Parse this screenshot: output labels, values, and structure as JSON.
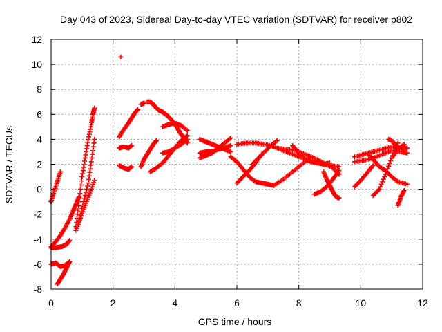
{
  "chart_data": {
    "type": "scatter",
    "title": "Day 043 of 2023, Sidereal Day-to-day VTEC variation (SDTVAR) for receiver p802",
    "xlabel": "GPS time / hours",
    "ylabel": "SDTVAR / TECUs",
    "xlim": [
      0,
      12
    ],
    "ylim": [
      -8,
      12
    ],
    "xticks": [
      0,
      2,
      4,
      6,
      8,
      10,
      12
    ],
    "yticks": [
      -8,
      -6,
      -4,
      -2,
      0,
      2,
      4,
      6,
      8,
      10,
      12
    ],
    "grid": true,
    "marker": "+",
    "color": "#ff0000",
    "series": [
      {
        "name": "s1",
        "x": [
          0.0,
          0.1,
          0.2,
          0.3
        ],
        "y": [
          -1.0,
          -0.2,
          0.6,
          1.4
        ]
      },
      {
        "name": "s2",
        "x": [
          0.0,
          0.15,
          0.3,
          0.45,
          0.6,
          0.7,
          0.8,
          0.9
        ],
        "y": [
          -4.6,
          -4.2,
          -3.7,
          -3.1,
          -2.4,
          -1.8,
          -1.2,
          -0.6
        ]
      },
      {
        "name": "s3",
        "x": [
          0.0,
          0.1,
          0.2,
          0.35,
          0.5,
          0.6
        ],
        "y": [
          -4.7,
          -4.7,
          -4.65,
          -4.6,
          -4.4,
          -4.1
        ]
      },
      {
        "name": "s4",
        "x": [
          0.0,
          0.15,
          0.3,
          0.45,
          0.6
        ],
        "y": [
          -6.0,
          -5.9,
          -6.2,
          -6.1,
          -5.8
        ]
      },
      {
        "name": "s5",
        "x": [
          0.2,
          0.3,
          0.4,
          0.5,
          0.6
        ],
        "y": [
          -7.6,
          -7.2,
          -6.8,
          -6.3,
          -5.8
        ]
      },
      {
        "name": "s6",
        "x": [
          0.8,
          0.95,
          1.1,
          1.25,
          1.4
        ],
        "y": [
          -3.3,
          -2.3,
          -1.3,
          -0.3,
          0.7
        ]
      },
      {
        "name": "s7",
        "x": [
          0.8,
          0.9,
          1.0,
          1.1,
          1.2,
          1.3,
          1.35,
          1.4
        ],
        "y": [
          -3.0,
          -1.0,
          1.0,
          2.5,
          4.0,
          5.2,
          6.0,
          6.5
        ]
      },
      {
        "name": "s8",
        "x": [
          0.9,
          1.05,
          1.2,
          1.3,
          1.4
        ],
        "y": [
          -2.6,
          -1.0,
          0.5,
          2.2,
          4.0
        ]
      },
      {
        "name": "s9",
        "x": [
          2.25
        ],
        "y": [
          10.6
        ]
      },
      {
        "name": "s10",
        "x": [
          2.2,
          2.35,
          2.5,
          2.6,
          2.7,
          2.8
        ],
        "y": [
          4.2,
          4.8,
          5.3,
          5.7,
          6.1,
          6.4
        ]
      },
      {
        "name": "s11",
        "x": [
          2.2,
          2.35,
          2.5,
          2.6
        ],
        "y": [
          3.3,
          3.4,
          3.3,
          3.5
        ]
      },
      {
        "name": "s12",
        "x": [
          2.2,
          2.35,
          2.5,
          2.6
        ],
        "y": [
          1.9,
          1.7,
          1.6,
          1.8
        ]
      },
      {
        "name": "s13",
        "x": [
          2.9,
          3.0
        ],
        "y": [
          6.8,
          6.9
        ]
      },
      {
        "name": "s14",
        "x": [
          2.9,
          3.0,
          3.1,
          3.2,
          3.3,
          3.4
        ],
        "y": [
          1.8,
          2.4,
          2.8,
          3.2,
          3.6,
          3.9
        ]
      },
      {
        "name": "s15",
        "x": [
          3.1,
          3.2,
          3.3,
          3.4,
          3.5,
          3.6,
          3.7,
          3.8,
          3.9,
          4.0,
          4.1,
          4.2,
          4.3,
          4.4
        ],
        "y": [
          7.0,
          7.0,
          6.8,
          6.5,
          6.3,
          6.2,
          6.0,
          5.8,
          5.5,
          5.2,
          4.8,
          4.4,
          4.1,
          3.7
        ]
      },
      {
        "name": "s16",
        "x": [
          3.2,
          3.4,
          3.6,
          3.8,
          4.0,
          4.2,
          4.4
        ],
        "y": [
          1.4,
          1.7,
          2.1,
          2.7,
          3.3,
          3.9,
          4.3
        ]
      },
      {
        "name": "s17",
        "x": [
          3.6,
          3.8,
          4.0,
          4.2,
          4.4
        ],
        "y": [
          2.9,
          3.0,
          3.3,
          3.6,
          4.0
        ]
      },
      {
        "name": "s18",
        "x": [
          3.6,
          3.8,
          4.0,
          4.2,
          4.4
        ],
        "y": [
          5.0,
          5.2,
          5.3,
          5.1,
          4.7
        ]
      },
      {
        "name": "s19",
        "x": [
          4.8,
          5.0,
          5.2,
          5.4,
          5.6,
          5.8
        ],
        "y": [
          2.5,
          2.7,
          2.9,
          3.3,
          3.7,
          4.1
        ]
      },
      {
        "name": "s20",
        "x": [
          4.8,
          5.0,
          5.2,
          5.4,
          5.6,
          5.8
        ],
        "y": [
          4.0,
          3.8,
          3.6,
          3.4,
          3.2,
          3.0
        ]
      },
      {
        "name": "s21",
        "x": [
          4.8,
          5.0,
          5.2,
          5.4,
          5.6,
          5.8
        ],
        "y": [
          2.9,
          3.0,
          3.0,
          3.2,
          3.3,
          3.5
        ]
      },
      {
        "name": "s22",
        "x": [
          6.0,
          6.3,
          6.6,
          6.9,
          7.2,
          7.5,
          7.8,
          8.1,
          8.4,
          8.7,
          9.0,
          9.3
        ],
        "y": [
          3.6,
          3.7,
          3.7,
          3.6,
          3.4,
          3.1,
          2.8,
          2.5,
          2.3,
          2.1,
          1.9,
          1.8
        ]
      },
      {
        "name": "s23",
        "x": [
          6.0,
          6.2,
          6.4,
          6.6,
          6.8
        ],
        "y": [
          0.5,
          1.0,
          1.5,
          2.1,
          2.8
        ]
      },
      {
        "name": "s24",
        "x": [
          6.5,
          6.7,
          6.9,
          7.1,
          7.3
        ],
        "y": [
          2.0,
          2.5,
          3.0,
          3.5,
          3.9
        ]
      },
      {
        "name": "s25",
        "x": [
          5.8,
          6.0,
          6.2,
          6.4,
          6.6,
          6.8,
          7.0,
          7.2
        ],
        "y": [
          2.6,
          2.2,
          1.6,
          1.0,
          0.6,
          0.5,
          0.4,
          0.3
        ]
      },
      {
        "name": "s26",
        "x": [
          7.2,
          7.5,
          7.8,
          8.1,
          8.4
        ],
        "y": [
          0.3,
          0.8,
          1.4,
          2.0,
          2.6
        ]
      },
      {
        "name": "s27",
        "x": [
          7.3,
          7.6,
          7.9,
          8.2,
          8.5,
          8.8,
          9.1,
          9.3
        ],
        "y": [
          3.3,
          3.2,
          3.1,
          2.8,
          2.5,
          2.1,
          1.7,
          1.2
        ]
      },
      {
        "name": "s28",
        "x": [
          7.8,
          8.0,
          8.2,
          8.4,
          8.6,
          8.8,
          9.0
        ],
        "y": [
          3.5,
          2.9,
          2.4,
          2.2,
          2.1,
          2.0,
          2.1
        ]
      },
      {
        "name": "s29",
        "x": [
          8.5,
          8.7,
          8.9,
          9.1,
          9.3
        ],
        "y": [
          -0.4,
          -0.2,
          0.2,
          0.8,
          1.5
        ]
      },
      {
        "name": "s30",
        "x": [
          8.8,
          8.9,
          9.0,
          9.1,
          9.2,
          9.3
        ],
        "y": [
          1.4,
          0.8,
          0.3,
          -0.2,
          -0.6,
          -0.7
        ]
      },
      {
        "name": "s31",
        "x": [
          9.8,
          10.1,
          10.4,
          10.7,
          11.0,
          11.3,
          11.5
        ],
        "y": [
          2.6,
          2.8,
          3.0,
          3.2,
          3.4,
          3.3,
          3.3
        ]
      },
      {
        "name": "s32",
        "x": [
          9.8,
          10.0,
          10.2,
          10.4
        ],
        "y": [
          0.2,
          0.7,
          1.3,
          1.9
        ]
      },
      {
        "name": "s33",
        "x": [
          9.8,
          10.1,
          10.4,
          10.7,
          11.0,
          11.3,
          11.5
        ],
        "y": [
          2.2,
          2.3,
          2.5,
          2.8,
          3.1,
          3.0,
          2.9
        ]
      },
      {
        "name": "s34",
        "x": [
          10.2,
          10.4,
          10.6,
          10.8,
          11.0,
          11.2,
          11.5
        ],
        "y": [
          2.9,
          2.4,
          1.8,
          1.5,
          1.0,
          0.6,
          0.4
        ]
      },
      {
        "name": "s35",
        "x": [
          10.4,
          10.6,
          10.8,
          11.0,
          11.2
        ],
        "y": [
          -0.5,
          0.0,
          1.2,
          2.5,
          3.7
        ]
      },
      {
        "name": "s36",
        "x": [
          10.9,
          11.0,
          11.1,
          11.2
        ],
        "y": [
          4.0,
          3.9,
          3.6,
          3.3
        ]
      },
      {
        "name": "s37",
        "x": [
          11.2,
          11.3,
          11.4
        ],
        "y": [
          -1.3,
          -0.6,
          -0.1
        ]
      },
      {
        "name": "s38",
        "x": [
          11.0,
          11.2,
          11.4
        ],
        "y": [
          2.5,
          3.2,
          3.6
        ]
      }
    ]
  }
}
